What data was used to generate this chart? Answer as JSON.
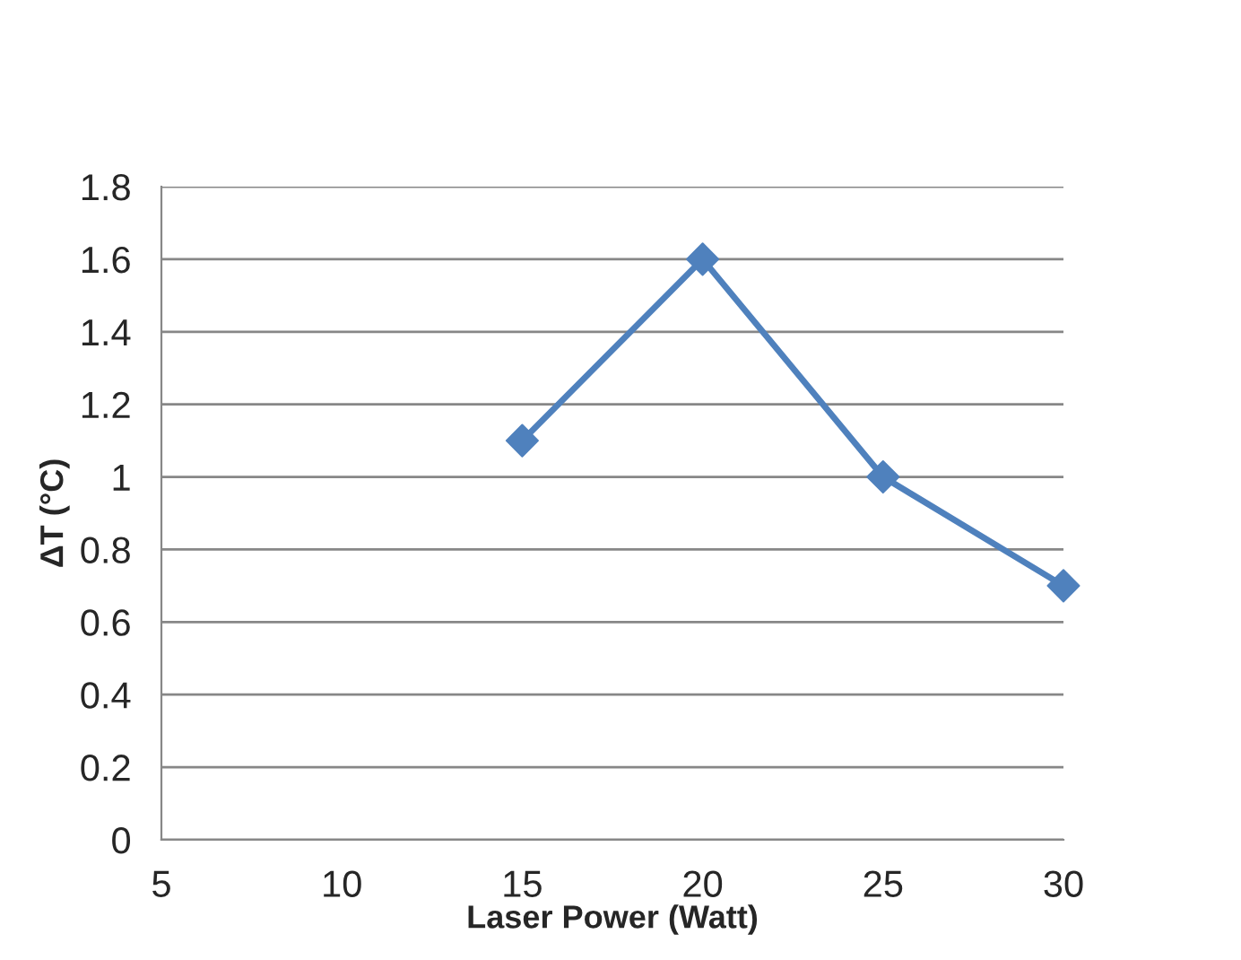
{
  "chart_data": {
    "type": "line",
    "xlabel": "Laser Power (Watt)",
    "ylabel": "ΔT (°C)",
    "x": [
      15,
      20,
      25,
      30
    ],
    "series": [
      {
        "color": "#4f81bd",
        "values": [
          1.1,
          1.6,
          1.0,
          0.7
        ]
      }
    ],
    "xlim": [
      5,
      30
    ],
    "xticks": [
      5,
      10,
      15,
      20,
      25,
      30
    ],
    "ylim": [
      0,
      1.8
    ],
    "yticks": [
      0,
      0.2,
      0.4,
      0.6,
      0.8,
      1,
      1.2,
      1.4,
      1.6,
      1.8
    ],
    "grid": "y",
    "marker": "diamond",
    "line_style": "solid"
  }
}
